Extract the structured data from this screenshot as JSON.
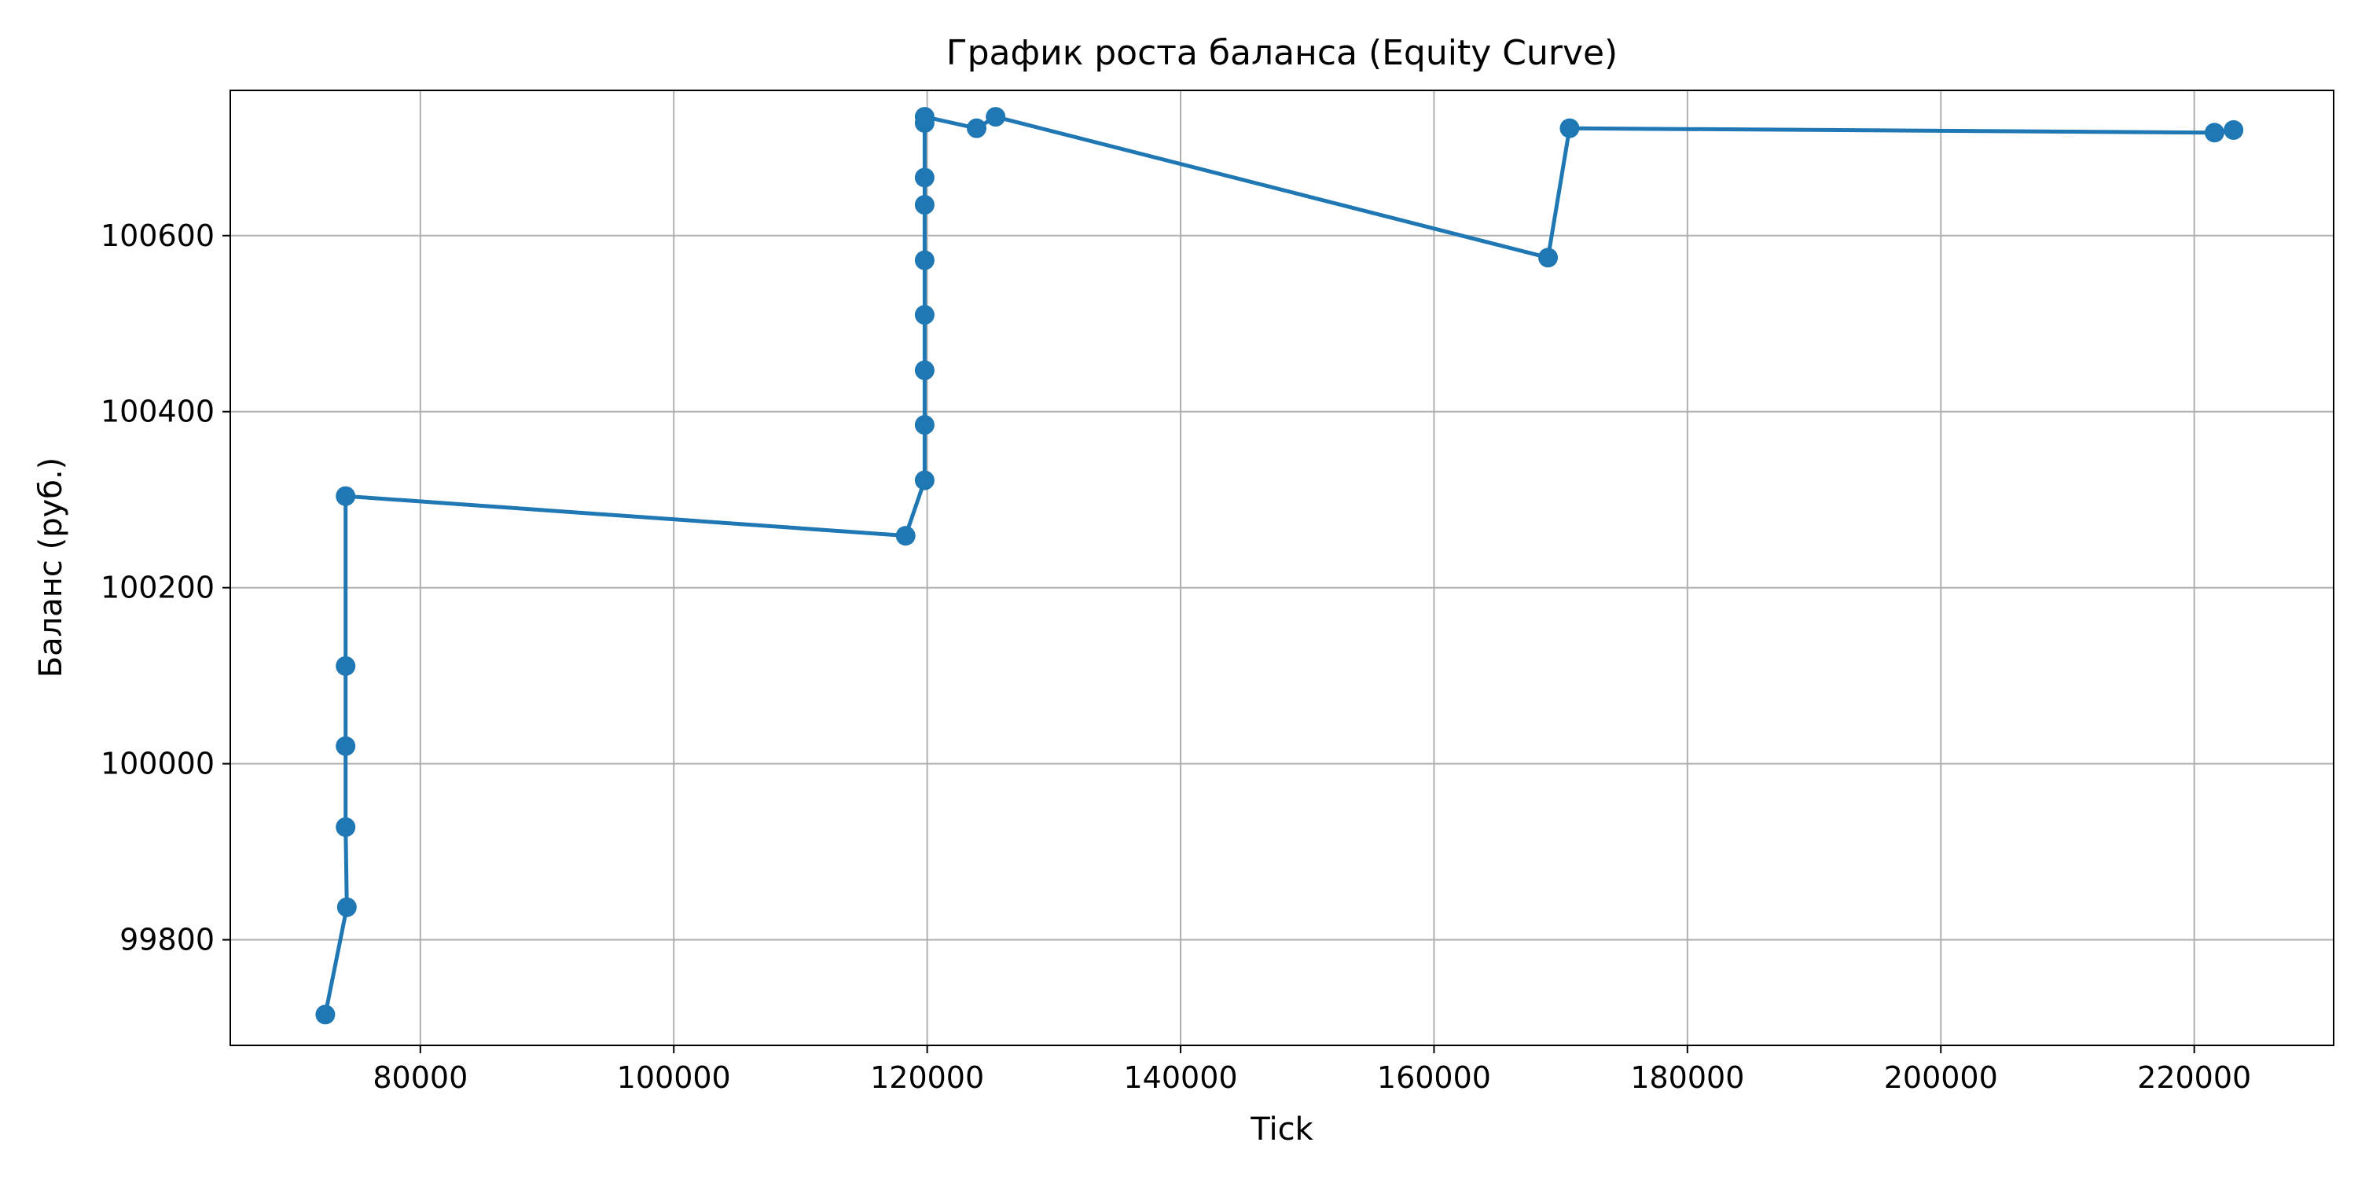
{
  "chart_data": {
    "type": "line",
    "title": "График роста баланса (Equity Curve)",
    "xlabel": "Tick",
    "ylabel": "Баланс (руб.)",
    "xlim": [
      65000,
      231000
    ],
    "ylim": [
      99680,
      100765
    ],
    "xticks": [
      80000,
      100000,
      120000,
      140000,
      160000,
      180000,
      200000,
      220000
    ],
    "yticks": [
      99800,
      100000,
      100200,
      100400,
      100600
    ],
    "grid": true,
    "legend": "none",
    "series": [
      {
        "color": "#1f77b4",
        "marker": "circle",
        "points": [
          {
            "x": 72500,
            "y": 99715
          },
          {
            "x": 74200,
            "y": 99837
          },
          {
            "x": 74100,
            "y": 99928
          },
          {
            "x": 74100,
            "y": 100020
          },
          {
            "x": 74100,
            "y": 100111
          },
          {
            "x": 74100,
            "y": 100304
          },
          {
            "x": 118300,
            "y": 100259
          },
          {
            "x": 119800,
            "y": 100322
          },
          {
            "x": 119800,
            "y": 100385
          },
          {
            "x": 119800,
            "y": 100447
          },
          {
            "x": 119800,
            "y": 100510
          },
          {
            "x": 119800,
            "y": 100572
          },
          {
            "x": 119800,
            "y": 100635
          },
          {
            "x": 119800,
            "y": 100666
          },
          {
            "x": 119800,
            "y": 100728
          },
          {
            "x": 119800,
            "y": 100735
          },
          {
            "x": 123900,
            "y": 100722
          },
          {
            "x": 125400,
            "y": 100735
          },
          {
            "x": 169000,
            "y": 100575
          },
          {
            "x": 170700,
            "y": 100722
          },
          {
            "x": 221600,
            "y": 100717
          },
          {
            "x": 223100,
            "y": 100720
          }
        ]
      }
    ]
  }
}
